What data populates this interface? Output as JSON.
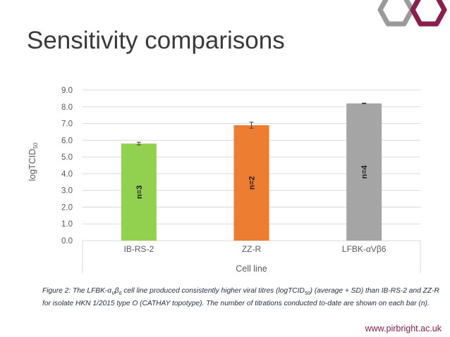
{
  "slide": {
    "title": "Sensitivity comparisons",
    "footer_url": "www.pirbright.ac.uk"
  },
  "caption": {
    "part1": "Figure 2: The LFBK-α",
    "sub1": "V",
    "part2": "β",
    "sub2": "6",
    "part3": " cell line produced consistently higher viral titres (logTCID",
    "sub3": "50",
    "part4": ") (average + SD) than IB-RS-2 and ZZ-R for isolate HKN 1/2015 type O (CATHAY topotype). The number of  titrations conducted to-date are shown on each bar (n)."
  },
  "colors": {
    "accent": "#8b1e4a",
    "hex_outline": "#9a9a9a"
  },
  "chart_data": {
    "type": "bar",
    "categories": [
      "IB-RS-2",
      "ZZ-R",
      "LFBK-αVβ6"
    ],
    "values": [
      5.8,
      6.9,
      8.2
    ],
    "errors": [
      0.08,
      0.18,
      0.02
    ],
    "bar_labels": [
      "n=3",
      "n=2",
      "n=4"
    ],
    "bar_colors": [
      "#92d050",
      "#ed7d31",
      "#a5a5a5"
    ],
    "xlabel": "Cell line",
    "ylabel_main": "logTCID",
    "ylabel_sub": "50",
    "ylim": [
      0,
      9
    ],
    "yticks": [
      0,
      1,
      2,
      3,
      4,
      5,
      6,
      7,
      8,
      9
    ],
    "ytick_labels": [
      "0.0",
      "1.0",
      "2.0",
      "3.0",
      "4.0",
      "5.0",
      "6.0",
      "7.0",
      "8.0",
      "9.0"
    ],
    "grid": true
  }
}
